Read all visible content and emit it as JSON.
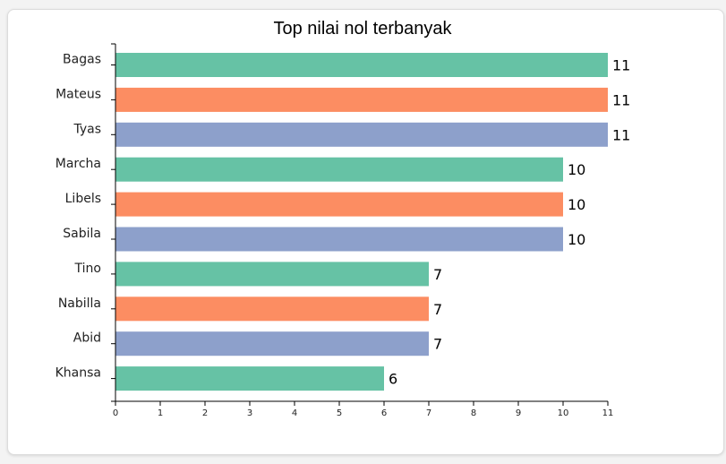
{
  "chart_data": {
    "type": "bar",
    "orientation": "horizontal",
    "title": "Top nilai nol terbanyak",
    "xlabel": "",
    "ylabel": "",
    "categories": [
      "Bagas",
      "Mateus",
      "Tyas",
      "Marcha",
      "Libels",
      "Sabila",
      "Tino",
      "Nabilla",
      "Abid",
      "Khansa"
    ],
    "values": [
      11,
      11,
      11,
      10,
      10,
      10,
      7,
      7,
      7,
      6
    ],
    "xlim": [
      0,
      11
    ],
    "xticks": [
      "0",
      "1",
      "2",
      "3",
      "4",
      "5",
      "6",
      "7",
      "8",
      "9",
      "10",
      "11"
    ],
    "grid": false,
    "data_labels": true,
    "colors": [
      "#66c2a5",
      "#fc8d62",
      "#8da0cb"
    ]
  }
}
